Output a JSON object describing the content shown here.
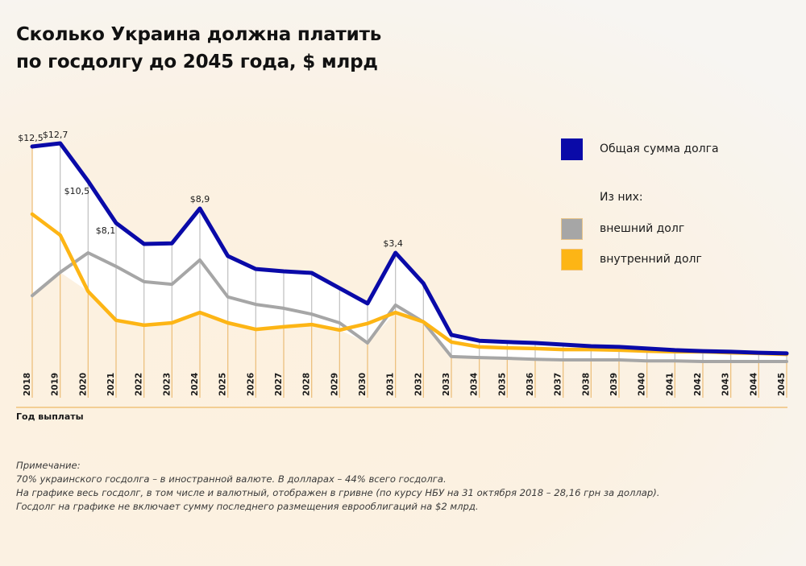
{
  "title": {
    "line1": "Сколько Украина должна платить",
    "line2": "по госдолгу до 2045 года, $ млрд"
  },
  "colors": {
    "total": "#0a0aa8",
    "external": "#a6a6a6",
    "domestic": "#fdb515",
    "axis": "#f0c27a",
    "fill": "#ffffff"
  },
  "legend": {
    "total_label": "Общая сумма долга",
    "subheader": "Из них:",
    "external_label": "внешний долг",
    "domestic_label": "внутренний долг"
  },
  "xaxis_title": "Год выплаты",
  "notes": {
    "heading": "Примечание:",
    "lines": [
      "70% украинского госдолга – в иностранной валюте. В долларах – 44% всего госдолга.",
      "На графике весь госдолг, в том числе и валютный, отображен в гривне (по курсу НБУ на 31 октября 2018 – 28,16 грн за доллар).",
      "Госдолг на графике не включает сумму последнего размещения еврооблигаций на $2 млрд."
    ]
  },
  "chart_data": {
    "type": "line",
    "title": "Сколько Украина должна платить по госдолгу до 2045 года, $ млрд",
    "xlabel": "Год выплаты",
    "ylabel": "",
    "grid": false,
    "legend_position": "right",
    "x": [
      "2018",
      "2019",
      "2020",
      "2021",
      "2022",
      "2023",
      "2024",
      "2025",
      "2026",
      "2027",
      "2028",
      "2029",
      "2030",
      "2031",
      "2032",
      "2033",
      "2034",
      "2035",
      "2036",
      "2037",
      "2038",
      "2039",
      "2040",
      "2041",
      "2042",
      "2043",
      "2044",
      "2045"
    ],
    "series": [
      {
        "name": "Общая сумма долга",
        "key": "total",
        "values": [
          12.5,
          12.7,
          10.5,
          8.1,
          4.8,
          4.9,
          8.9,
          3.3,
          2.9,
          2.83,
          2.78,
          2.31,
          1.84,
          3.4,
          2.46,
          0.87,
          0.69,
          0.65,
          0.62,
          0.57,
          0.52,
          0.5,
          0.45,
          0.4,
          0.37,
          0.35,
          0.32,
          0.3
        ]
      },
      {
        "name": "внешний долг",
        "key": "external",
        "values": [
          2.08,
          2.8,
          3.4,
          2.98,
          2.51,
          2.43,
          3.18,
          2.04,
          1.81,
          1.69,
          1.51,
          1.24,
          0.62,
          1.79,
          1.27,
          0.2,
          0.17,
          0.15,
          0.12,
          0.1,
          0.1,
          0.1,
          0.07,
          0.07,
          0.05,
          0.05,
          0.05,
          0.05
        ]
      },
      {
        "name": "внутренний долг",
        "key": "domestic",
        "values": [
          8.59,
          6.19,
          2.21,
          1.32,
          1.17,
          1.24,
          1.56,
          1.24,
          1.04,
          1.12,
          1.19,
          1.02,
          1.22,
          1.56,
          1.27,
          0.65,
          0.5,
          0.47,
          0.45,
          0.42,
          0.42,
          0.4,
          0.37,
          0.35,
          0.35,
          0.32,
          0.3,
          0.27
        ]
      }
    ],
    "data_labels": [
      {
        "x": "2018",
        "text": "$12,5"
      },
      {
        "x": "2019",
        "text": "$12,7"
      },
      {
        "x": "2020",
        "text": "$10,5"
      },
      {
        "x": "2021",
        "text": "$8,1"
      },
      {
        "x": "2024",
        "text": "$8,9"
      },
      {
        "x": "2031",
        "text": "$3,4"
      }
    ]
  }
}
